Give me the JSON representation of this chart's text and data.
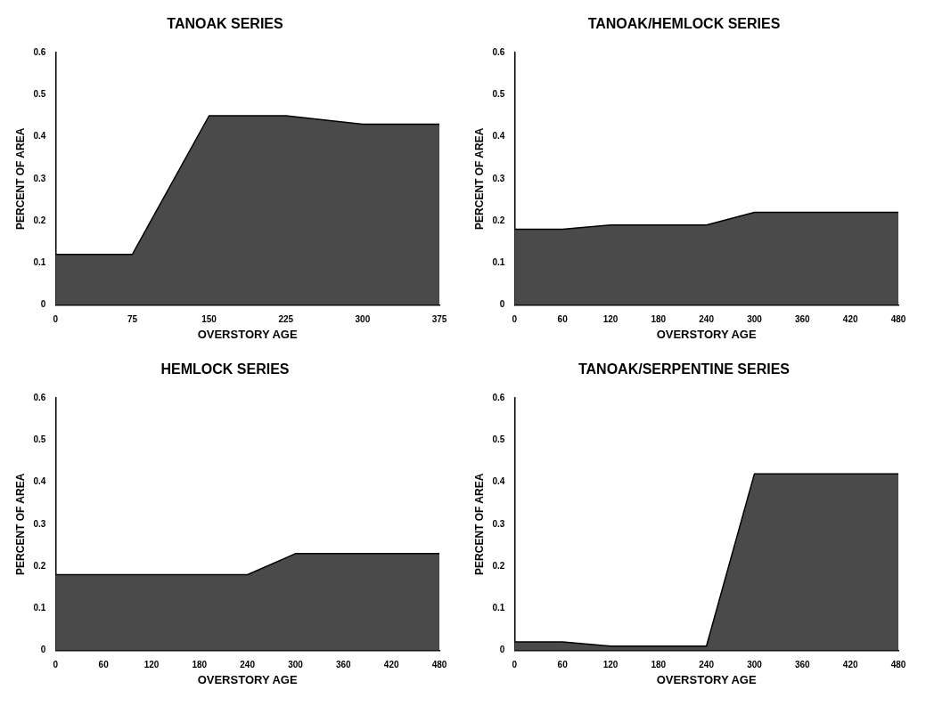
{
  "chart_data": [
    {
      "type": "area",
      "title": "TANOAK SERIES",
      "xlabel": "OVERSTORY AGE",
      "ylabel": "PERCENT OF AREA",
      "x": [
        0,
        75,
        150,
        225,
        300,
        375
      ],
      "values": [
        0.12,
        0.12,
        0.45,
        0.45,
        0.43,
        0.43
      ],
      "color": "#4a4a4a",
      "xlim": [
        0,
        375
      ],
      "xticks": [
        0,
        75,
        150,
        225,
        300,
        375
      ],
      "ylim": [
        0,
        0.6
      ],
      "yticks": [
        0,
        0.1,
        0.2,
        0.3,
        0.4,
        0.5,
        0.6
      ],
      "grid": false,
      "legend": false
    },
    {
      "type": "area",
      "title": "TANOAK/HEMLOCK SERIES",
      "xlabel": "OVERSTORY AGE",
      "ylabel": "PERCENT OF AREA",
      "x": [
        0,
        60,
        120,
        180,
        240,
        300,
        360,
        420,
        480
      ],
      "values": [
        0.18,
        0.18,
        0.19,
        0.19,
        0.19,
        0.22,
        0.22,
        0.22,
        0.22
      ],
      "color": "#4a4a4a",
      "xlim": [
        0,
        480
      ],
      "xticks": [
        0,
        60,
        120,
        180,
        240,
        300,
        360,
        420,
        480
      ],
      "ylim": [
        0,
        0.6
      ],
      "yticks": [
        0,
        0.1,
        0.2,
        0.3,
        0.4,
        0.5,
        0.6
      ],
      "grid": false,
      "legend": false
    },
    {
      "type": "area",
      "title": "HEMLOCK SERIES",
      "xlabel": "OVERSTORY AGE",
      "ylabel": "PERCENT OF AREA",
      "x": [
        0,
        60,
        120,
        180,
        240,
        300,
        360,
        420,
        480
      ],
      "values": [
        0.18,
        0.18,
        0.18,
        0.18,
        0.18,
        0.23,
        0.23,
        0.23,
        0.23
      ],
      "color": "#4a4a4a",
      "xlim": [
        0,
        480
      ],
      "xticks": [
        0,
        60,
        120,
        180,
        240,
        300,
        360,
        420,
        480
      ],
      "ylim": [
        0,
        0.6
      ],
      "yticks": [
        0,
        0.1,
        0.2,
        0.3,
        0.4,
        0.5,
        0.6
      ],
      "grid": false,
      "legend": false
    },
    {
      "type": "area",
      "title": "TANOAK/SERPENTINE SERIES",
      "xlabel": "OVERSTORY AGE",
      "ylabel": "PERCENT OF AREA",
      "x": [
        0,
        60,
        120,
        180,
        240,
        300,
        360,
        420,
        480
      ],
      "values": [
        0.02,
        0.02,
        0.01,
        0.01,
        0.01,
        0.42,
        0.42,
        0.42,
        0.42
      ],
      "color": "#4a4a4a",
      "xlim": [
        0,
        480
      ],
      "xticks": [
        0,
        60,
        120,
        180,
        240,
        300,
        360,
        420,
        480
      ],
      "ylim": [
        0,
        0.6
      ],
      "yticks": [
        0,
        0.1,
        0.2,
        0.3,
        0.4,
        0.5,
        0.6
      ],
      "grid": false,
      "legend": false
    }
  ]
}
